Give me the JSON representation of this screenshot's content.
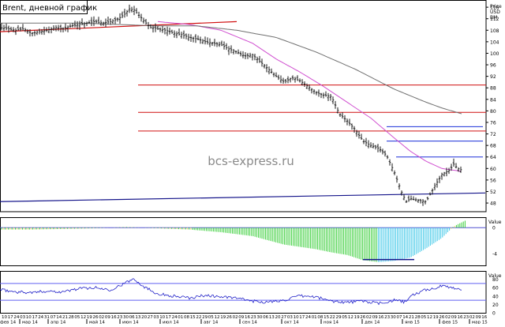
{
  "title": "Brent, дневной график",
  "watermark": "bcs-express.ru",
  "price_axis_header": [
    "Price",
    "USD",
    "BM"
  ],
  "value_label": "Value",
  "colors": {
    "price_bars": "#1a1a1a",
    "ma_magenta": "#d050d0",
    "ma_gray": "#707070",
    "support_red": "#d01010",
    "resistance_blue": "#1a2fd8",
    "trend_blue": "#14148a",
    "macd_green": "#3ccf3c",
    "macd_cyan": "#40c8e8",
    "macd_yellow": "#f0e060",
    "rsi_line": "#2020c8",
    "rsi_band": "#6060f0"
  },
  "chart_data": [
    {
      "type": "line",
      "panel": "price",
      "y_ticks": [
        48,
        52,
        56,
        60,
        64,
        68,
        72,
        76,
        80,
        84,
        88,
        92,
        96,
        100,
        104,
        108,
        112,
        116
      ],
      "ylim": [
        45,
        118.5
      ],
      "series": [
        {
          "kind": "daily bars",
          "x": [
            0,
            10,
            20,
            30,
            40,
            50,
            60,
            70,
            80,
            90,
            100,
            110,
            120,
            130,
            140,
            150,
            160,
            163,
            170,
            180,
            190,
            200,
            210,
            220,
            230,
            240,
            250,
            260,
            270,
            280,
            290,
            300,
            310,
            320,
            330,
            340,
            350,
            360,
            370,
            380,
            390,
            400,
            410,
            420,
            430,
            440,
            450,
            460,
            470,
            480,
            490,
            500,
            510,
            515,
            520,
            530,
            540,
            550,
            560,
            570,
            575,
            580,
            585
          ],
          "values": [
            109.0,
            108.5,
            108.0,
            108.5,
            107.0,
            107.5,
            108.0,
            109.0,
            108.5,
            109.5,
            110.0,
            110.5,
            111.0,
            110.5,
            111.0,
            112.0,
            114.0,
            115.5,
            115.0,
            112.0,
            109.0,
            108.5,
            108.0,
            107.0,
            106.5,
            105.5,
            105.0,
            104.0,
            103.5,
            103.0,
            101.5,
            100.5,
            99.0,
            99.5,
            97.0,
            94.5,
            92.0,
            90.0,
            91.5,
            90.5,
            88.5,
            86.5,
            85.5,
            85.0,
            79.0,
            76.5,
            73.5,
            69.5,
            68.0,
            67.0,
            64.5,
            58.5,
            51.0,
            48.5,
            49.5,
            49.0,
            48.5,
            53.5,
            58.0,
            59.5,
            61.5,
            60.0,
            59.5
          ]
        },
        {
          "name": "",
          "kind": "moving average",
          "x": [
            200,
            240,
            280,
            320,
            350,
            380,
            410,
            440,
            470,
            500,
            520,
            540,
            560,
            585
          ],
          "values": [
            111.0,
            110.0,
            108.0,
            103.5,
            98.0,
            93.5,
            88.5,
            83.0,
            77.5,
            70.5,
            66.0,
            62.5,
            60.0,
            59.0
          ]
        },
        {
          "name": "",
          "kind": "moving average",
          "x": [
            0,
            100,
            200,
            250,
            300,
            350,
            400,
            450,
            500,
            540,
            560,
            585
          ],
          "values": [
            110.5,
            110.5,
            109.5,
            109.5,
            108.0,
            105.5,
            100.5,
            94.5,
            87.5,
            83.0,
            81.0,
            79.0
          ]
        }
      ],
      "horizontal_levels_red": [
        89.0,
        79.5,
        73.0
      ],
      "horizontal_levels_blue": [
        74.5,
        69.5,
        64.0
      ],
      "trendlines": [
        {
          "color": "red",
          "x": [
            0,
            300
          ],
          "values": [
            107.5,
            111.0
          ]
        },
        {
          "color": "navy",
          "x": [
            0,
            615
          ],
          "values": [
            48.5,
            51.5
          ]
        }
      ]
    },
    {
      "type": "bar",
      "panel": "MACD",
      "y_ticks": [
        0,
        -4
      ],
      "ylim": [
        -5.8,
        1.6
      ],
      "x": [
        0,
        40,
        80,
        120,
        160,
        200,
        240,
        280,
        320,
        360,
        400,
        420,
        440,
        460,
        480,
        500,
        520,
        540,
        560,
        575,
        590
      ],
      "values": [
        -0.3,
        -0.3,
        -0.2,
        -0.1,
        0.1,
        -0.1,
        -0.3,
        -0.7,
        -1.3,
        -2.6,
        -3.3,
        -3.8,
        -4.2,
        -5.0,
        -5.3,
        -5.1,
        -4.6,
        -3.2,
        -1.6,
        0.2,
        1.1
      ],
      "annotation_blue_line_value": -4.9
    },
    {
      "type": "line",
      "panel": "RSI",
      "y_ticks": [
        80,
        60,
        40,
        20,
        0
      ],
      "ylim": [
        0,
        100
      ],
      "bands": [
        70,
        30
      ],
      "x": [
        0,
        20,
        40,
        60,
        80,
        100,
        120,
        140,
        160,
        170,
        180,
        200,
        220,
        240,
        260,
        280,
        300,
        320,
        340,
        360,
        380,
        400,
        420,
        440,
        460,
        480,
        500,
        515,
        520,
        540,
        550,
        560,
        575,
        585
      ],
      "values": [
        55,
        50,
        48,
        52,
        50,
        58,
        60,
        55,
        72,
        82,
        65,
        45,
        40,
        35,
        42,
        38,
        35,
        28,
        25,
        30,
        40,
        38,
        28,
        25,
        28,
        22,
        30,
        25,
        40,
        55,
        58,
        64,
        60,
        55
      ]
    }
  ],
  "x_axis": {
    "day_labels": [
      "10",
      "17",
      "24",
      "03",
      "10",
      "17",
      "24",
      "31",
      "07",
      "14",
      "21",
      "28",
      "05",
      "12",
      "19",
      "26",
      "02",
      "09",
      "16",
      "23",
      "30",
      "06",
      "13",
      "20",
      "27",
      "03",
      "10",
      "17",
      "24",
      "01",
      "08",
      "15",
      "22",
      "29",
      "05",
      "12",
      "19",
      "26",
      "02",
      "09",
      "16",
      "23",
      "30",
      "06",
      "13",
      "20",
      "27",
      "03",
      "10",
      "17",
      "24",
      "01",
      "08",
      "15",
      "22",
      "29",
      "05",
      "12",
      "19",
      "26",
      "02",
      "09",
      "16",
      "23",
      "30",
      "07",
      "14",
      "21",
      "28",
      "05",
      "12",
      "19",
      "26",
      "02",
      "09",
      "16",
      "23",
      "02",
      "09",
      "16"
    ],
    "month_labels": [
      "фев 14",
      "мар 14",
      "апр 14",
      "май 14",
      "июн 14",
      "июл 14",
      "авг 14",
      "сен 14",
      "окт 14",
      "ноя 14",
      "дек 14",
      "янв 15",
      "фев 15",
      "мар 15"
    ]
  }
}
